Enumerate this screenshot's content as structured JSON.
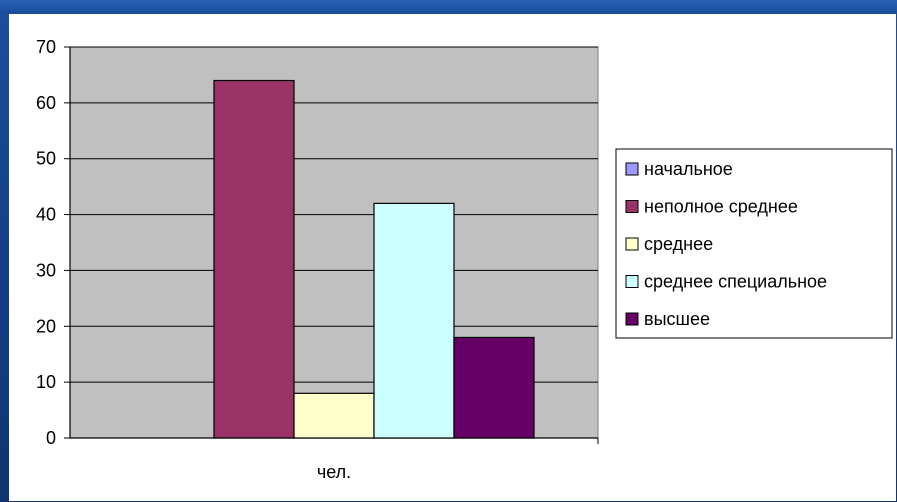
{
  "chart_data": {
    "type": "bar",
    "categories": [
      "чел."
    ],
    "series": [
      {
        "name": "начальное",
        "values": [
          0
        ],
        "color": "#9999ff"
      },
      {
        "name": "неполное среднее",
        "values": [
          64
        ],
        "color": "#993366"
      },
      {
        "name": "среднее",
        "values": [
          8
        ],
        "color": "#ffffcc"
      },
      {
        "name": "среднее специальное",
        "values": [
          42
        ],
        "color": "#ccffff"
      },
      {
        "name": "высшее",
        "values": [
          18
        ],
        "color": "#660066"
      }
    ],
    "y_ticks": [
      "0",
      "10",
      "20",
      "30",
      "40",
      "50",
      "60",
      "70"
    ],
    "ylim": [
      0,
      70
    ],
    "grid": true,
    "legend_position": "right",
    "plot_background": "#c0c0c0"
  }
}
